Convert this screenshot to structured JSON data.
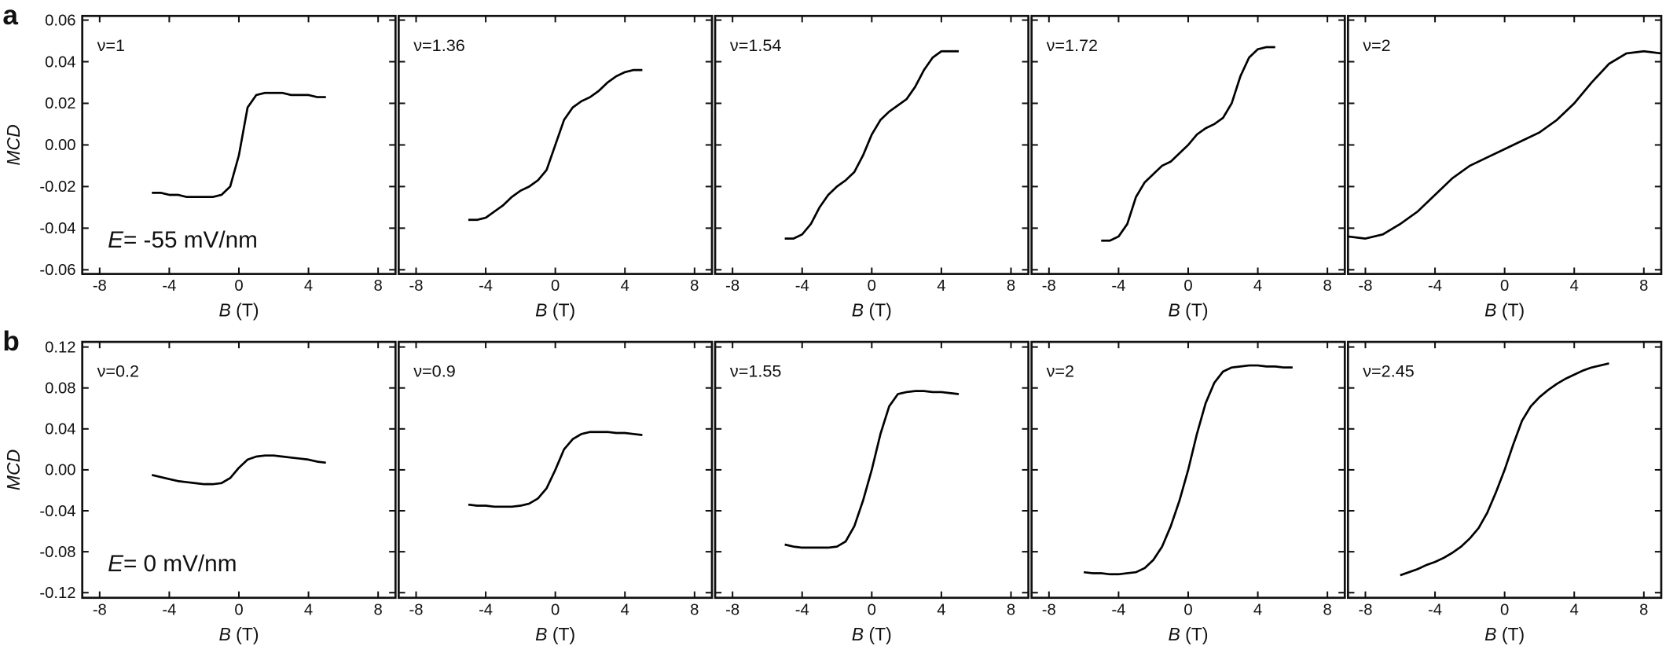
{
  "chart_data": [
    {
      "type": "line",
      "panel_label": "a",
      "label": "ν=1",
      "y_label": "MCD",
      "x_label": {
        "symbol": "B",
        "unit": "(T)"
      },
      "annotation": {
        "symbol": "E",
        "text": "= -55 mV/nm"
      },
      "color": "#000000",
      "x": [
        -5,
        -4.5,
        -4,
        -3.5,
        -3,
        -2.5,
        -2,
        -1.5,
        -1,
        -0.5,
        0,
        0.5,
        1,
        1.5,
        2,
        2.5,
        3,
        3.5,
        4,
        4.5,
        5
      ],
      "values": [
        -0.023,
        -0.023,
        -0.024,
        -0.024,
        -0.025,
        -0.025,
        -0.025,
        -0.025,
        -0.024,
        -0.02,
        -0.005,
        0.018,
        0.024,
        0.025,
        0.025,
        0.025,
        0.024,
        0.024,
        0.024,
        0.023,
        0.023
      ],
      "xlim": [
        -9,
        9
      ],
      "xticks": [
        -8,
        -4,
        0,
        4,
        8
      ],
      "ylim": [
        -0.062,
        0.062
      ],
      "yticks": [
        -0.06,
        -0.04,
        -0.02,
        {
          "value": 0,
          "label": "0.00"
        },
        0.02,
        0.04,
        0.06
      ]
    },
    {
      "type": "line",
      "label": "ν=1.36",
      "x_label": {
        "symbol": "B",
        "unit": "(T)"
      },
      "color": "#000000",
      "x": [
        -5,
        -4.5,
        -4,
        -3.5,
        -3,
        -2.5,
        -2,
        -1.5,
        -1,
        -0.5,
        0,
        0.5,
        1,
        1.5,
        2,
        2.5,
        3,
        3.5,
        4,
        4.5,
        5
      ],
      "values": [
        -0.036,
        -0.036,
        -0.035,
        -0.032,
        -0.029,
        -0.025,
        -0.022,
        -0.02,
        -0.017,
        -0.012,
        0.0,
        0.012,
        0.018,
        0.021,
        0.023,
        0.026,
        0.03,
        0.033,
        0.035,
        0.036,
        0.036
      ],
      "xlim": [
        -9,
        9
      ],
      "xticks": [
        -8,
        -4,
        0,
        4,
        8
      ],
      "ylim": [
        -0.062,
        0.062
      ],
      "yticks": [
        -0.06,
        -0.04,
        -0.02,
        0,
        0.02,
        0.04,
        0.06
      ]
    },
    {
      "type": "line",
      "label": "ν=1.54",
      "x_label": {
        "symbol": "B",
        "unit": "(T)"
      },
      "color": "#000000",
      "x": [
        -5,
        -4.5,
        -4,
        -3.5,
        -3,
        -2.5,
        -2,
        -1.5,
        -1,
        -0.5,
        0,
        0.5,
        1,
        1.5,
        2,
        2.5,
        3,
        3.5,
        4,
        4.5,
        5
      ],
      "values": [
        -0.045,
        -0.045,
        -0.043,
        -0.038,
        -0.03,
        -0.024,
        -0.02,
        -0.017,
        -0.013,
        -0.005,
        0.005,
        0.012,
        0.016,
        0.019,
        0.022,
        0.028,
        0.036,
        0.042,
        0.045,
        0.045,
        0.045
      ],
      "xlim": [
        -9,
        9
      ],
      "xticks": [
        -8,
        -4,
        0,
        4,
        8
      ],
      "ylim": [
        -0.062,
        0.062
      ],
      "yticks": [
        -0.06,
        -0.04,
        -0.02,
        0,
        0.02,
        0.04,
        0.06
      ]
    },
    {
      "type": "line",
      "label": "ν=1.72",
      "x_label": {
        "symbol": "B",
        "unit": "(T)"
      },
      "color": "#000000",
      "x": [
        -5,
        -4.5,
        -4,
        -3.5,
        -3,
        -2.5,
        -2,
        -1.5,
        -1,
        -0.5,
        0,
        0.5,
        1,
        1.5,
        2,
        2.5,
        3,
        3.5,
        4,
        4.5,
        5
      ],
      "values": [
        -0.046,
        -0.046,
        -0.044,
        -0.038,
        -0.025,
        -0.018,
        -0.014,
        -0.01,
        -0.008,
        -0.004,
        0.0,
        0.005,
        0.008,
        0.01,
        0.013,
        0.02,
        0.033,
        0.042,
        0.046,
        0.047,
        0.047
      ],
      "xlim": [
        -9,
        9
      ],
      "xticks": [
        -8,
        -4,
        0,
        4,
        8
      ],
      "ylim": [
        -0.062,
        0.062
      ],
      "yticks": [
        -0.06,
        -0.04,
        -0.02,
        0,
        0.02,
        0.04,
        0.06
      ]
    },
    {
      "type": "line",
      "label": "ν=2",
      "x_label": {
        "symbol": "B",
        "unit": "(T)"
      },
      "color": "#000000",
      "x": [
        -9,
        -8,
        -7,
        -6,
        -5,
        -4,
        -3,
        -2,
        -1,
        0,
        1,
        2,
        3,
        4,
        5,
        6,
        7,
        8,
        9
      ],
      "values": [
        -0.044,
        -0.045,
        -0.043,
        -0.038,
        -0.032,
        -0.024,
        -0.016,
        -0.01,
        -0.006,
        -0.002,
        0.002,
        0.006,
        0.012,
        0.02,
        0.03,
        0.039,
        0.044,
        0.045,
        0.044
      ],
      "xlim": [
        -9,
        9
      ],
      "xticks": [
        -8,
        -4,
        0,
        4,
        8
      ],
      "ylim": [
        -0.062,
        0.062
      ],
      "yticks": [
        -0.06,
        -0.04,
        -0.02,
        0,
        0.02,
        0.04,
        0.06
      ]
    },
    {
      "type": "line",
      "panel_label": "b",
      "label": "ν=0.2",
      "y_label": "MCD",
      "x_label": {
        "symbol": "B",
        "unit": "(T)"
      },
      "annotation": {
        "symbol": "E",
        "text": "= 0 mV/nm"
      },
      "color": "#000000",
      "x": [
        -5,
        -4.5,
        -4,
        -3.5,
        -3,
        -2.5,
        -2,
        -1.5,
        -1,
        -0.5,
        0,
        0.5,
        1,
        1.5,
        2,
        2.5,
        3,
        3.5,
        4,
        4.5,
        5
      ],
      "values": [
        -0.005,
        -0.007,
        -0.009,
        -0.011,
        -0.012,
        -0.013,
        -0.014,
        -0.014,
        -0.013,
        -0.008,
        0.002,
        0.01,
        0.013,
        0.014,
        0.014,
        0.013,
        0.012,
        0.011,
        0.01,
        0.008,
        0.007
      ],
      "xlim": [
        -9,
        9
      ],
      "xticks": [
        -8,
        -4,
        0,
        4,
        8
      ],
      "ylim": [
        -0.125,
        0.125
      ],
      "yticks": [
        -0.12,
        -0.08,
        -0.04,
        {
          "value": 0,
          "label": "0.00"
        },
        0.04,
        0.08,
        0.12
      ]
    },
    {
      "type": "line",
      "label": "ν=0.9",
      "x_label": {
        "symbol": "B",
        "unit": "(T)"
      },
      "color": "#000000",
      "x": [
        -5,
        -4.5,
        -4,
        -3.5,
        -3,
        -2.5,
        -2,
        -1.5,
        -1,
        -0.5,
        0,
        0.5,
        1,
        1.5,
        2,
        2.5,
        3,
        3.5,
        4,
        4.5,
        5
      ],
      "values": [
        -0.034,
        -0.035,
        -0.035,
        -0.036,
        -0.036,
        -0.036,
        -0.035,
        -0.033,
        -0.028,
        -0.018,
        0.0,
        0.02,
        0.03,
        0.035,
        0.037,
        0.037,
        0.037,
        0.036,
        0.036,
        0.035,
        0.034
      ],
      "xlim": [
        -9,
        9
      ],
      "xticks": [
        -8,
        -4,
        0,
        4,
        8
      ],
      "ylim": [
        -0.125,
        0.125
      ],
      "yticks": [
        -0.12,
        -0.08,
        -0.04,
        0,
        0.04,
        0.08,
        0.12
      ]
    },
    {
      "type": "line",
      "label": "ν=1.55",
      "x_label": {
        "symbol": "B",
        "unit": "(T)"
      },
      "color": "#000000",
      "x": [
        -5,
        -4.5,
        -4,
        -3.5,
        -3,
        -2.5,
        -2,
        -1.5,
        -1,
        -0.5,
        0,
        0.5,
        1,
        1.5,
        2,
        2.5,
        3,
        3.5,
        4,
        4.5,
        5
      ],
      "values": [
        -0.073,
        -0.075,
        -0.076,
        -0.076,
        -0.076,
        -0.076,
        -0.075,
        -0.07,
        -0.055,
        -0.03,
        0.0,
        0.035,
        0.062,
        0.074,
        0.076,
        0.077,
        0.077,
        0.076,
        0.076,
        0.075,
        0.074
      ],
      "xlim": [
        -9,
        9
      ],
      "xticks": [
        -8,
        -4,
        0,
        4,
        8
      ],
      "ylim": [
        -0.125,
        0.125
      ],
      "yticks": [
        -0.12,
        -0.08,
        -0.04,
        0,
        0.04,
        0.08,
        0.12
      ]
    },
    {
      "type": "line",
      "label": "ν=2",
      "x_label": {
        "symbol": "B",
        "unit": "(T)"
      },
      "color": "#000000",
      "x": [
        -6,
        -5.5,
        -5,
        -4.5,
        -4,
        -3.5,
        -3,
        -2.5,
        -2,
        -1.5,
        -1,
        -0.5,
        0,
        0.5,
        1,
        1.5,
        2,
        2.5,
        3,
        3.5,
        4,
        4.5,
        5,
        5.5,
        6
      ],
      "values": [
        -0.1,
        -0.101,
        -0.101,
        -0.102,
        -0.102,
        -0.101,
        -0.1,
        -0.096,
        -0.088,
        -0.075,
        -0.055,
        -0.03,
        0.0,
        0.035,
        0.065,
        0.085,
        0.096,
        0.1,
        0.101,
        0.102,
        0.102,
        0.101,
        0.101,
        0.1,
        0.1
      ],
      "xlim": [
        -9,
        9
      ],
      "xticks": [
        -8,
        -4,
        0,
        4,
        8
      ],
      "ylim": [
        -0.125,
        0.125
      ],
      "yticks": [
        -0.12,
        -0.08,
        -0.04,
        0,
        0.04,
        0.08,
        0.12
      ]
    },
    {
      "type": "line",
      "label": "ν=2.45",
      "x_label": {
        "symbol": "B",
        "unit": "(T)"
      },
      "color": "#000000",
      "x": [
        -6,
        -5.5,
        -5,
        -4.5,
        -4,
        -3.5,
        -3,
        -2.5,
        -2,
        -1.5,
        -1,
        -0.5,
        0,
        0.5,
        1,
        1.5,
        2,
        2.5,
        3,
        3.5,
        4,
        4.5,
        5,
        5.5,
        6
      ],
      "values": [
        -0.103,
        -0.1,
        -0.097,
        -0.093,
        -0.09,
        -0.086,
        -0.081,
        -0.075,
        -0.067,
        -0.057,
        -0.042,
        -0.022,
        0.0,
        0.025,
        0.048,
        0.062,
        0.071,
        0.078,
        0.084,
        0.089,
        0.093,
        0.097,
        0.1,
        0.102,
        0.104
      ],
      "xlim": [
        -9,
        9
      ],
      "xticks": [
        -8,
        -4,
        0,
        4,
        8
      ],
      "ylim": [
        -0.125,
        0.125
      ],
      "yticks": [
        -0.12,
        -0.08,
        -0.04,
        0,
        0.04,
        0.08,
        0.12
      ]
    }
  ]
}
